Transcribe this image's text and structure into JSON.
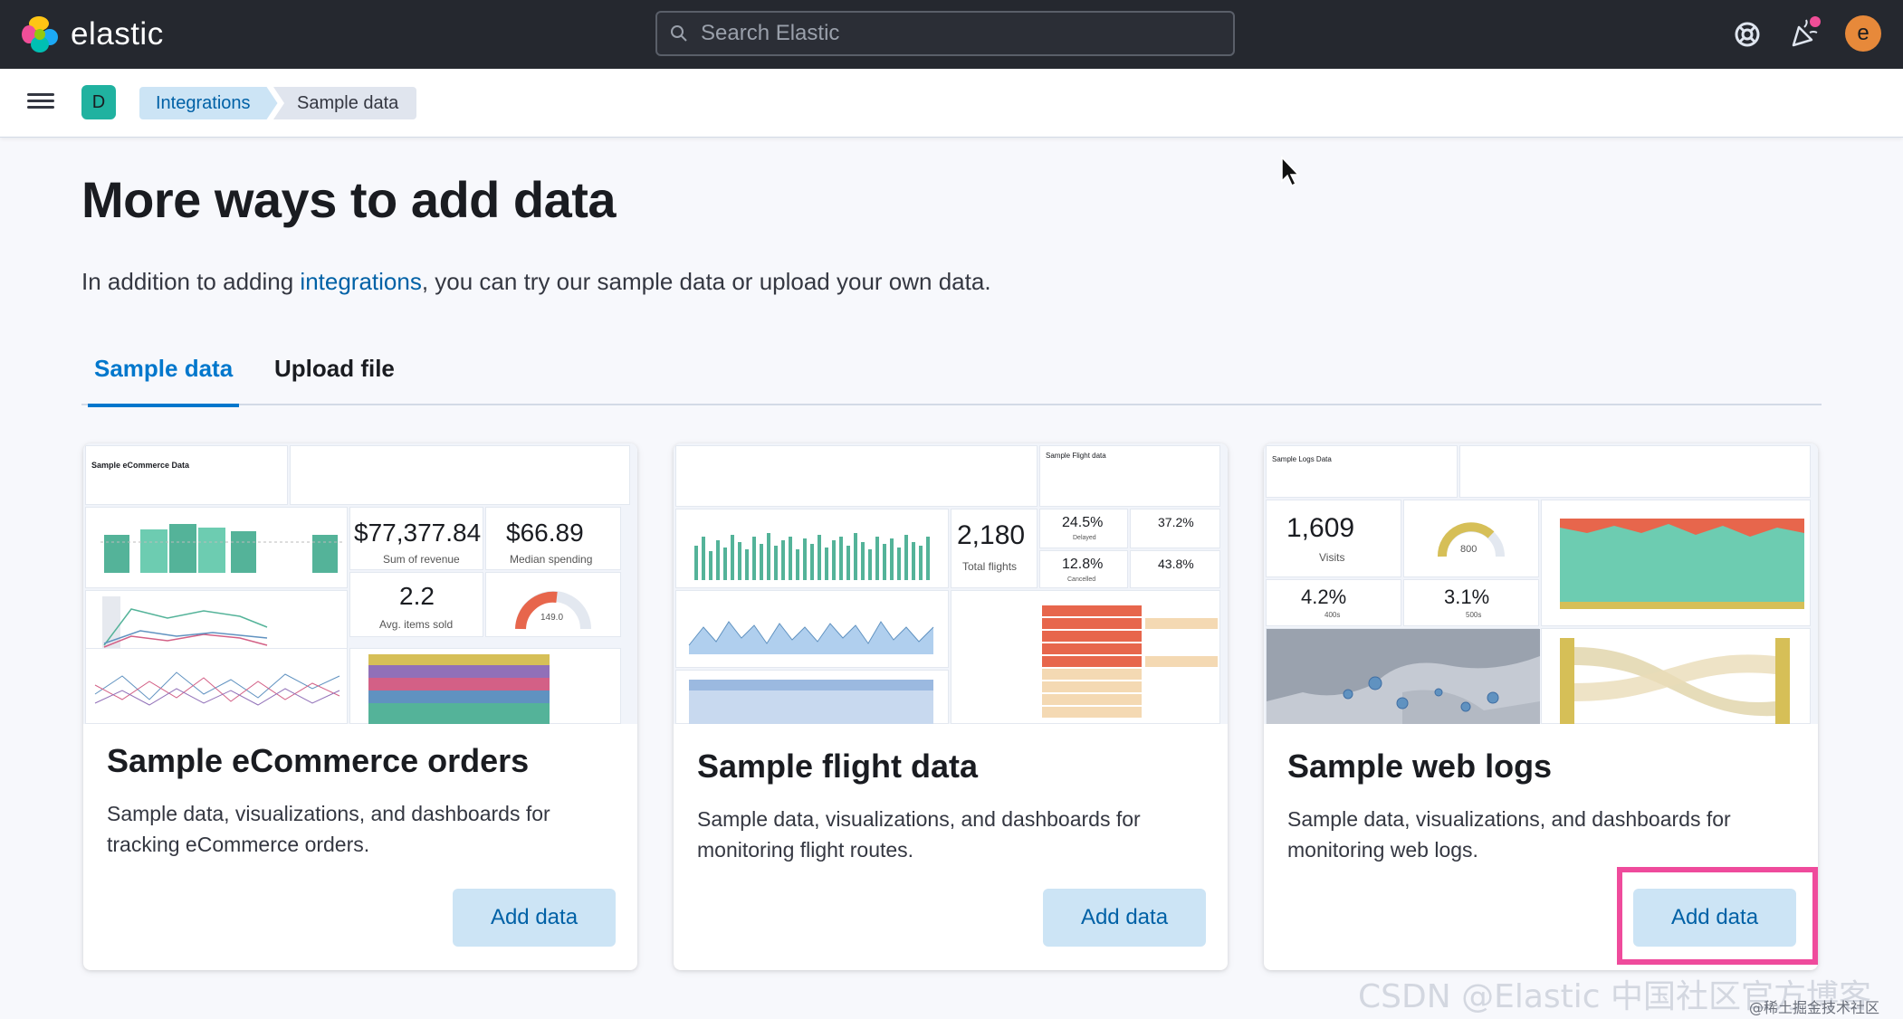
{
  "header": {
    "logo_text": "elastic",
    "search_placeholder": "Search Elastic",
    "avatar_initial": "e"
  },
  "navbar": {
    "space_initial": "D",
    "breadcrumbs": [
      "Integrations",
      "Sample data"
    ]
  },
  "page": {
    "title": "More ways to add data",
    "intro_before": "In addition to adding ",
    "intro_link": "integrations",
    "intro_after": ", you can try our sample data or upload your own data.",
    "tabs": [
      "Sample data",
      "Upload file"
    ],
    "active_tab": "Sample data"
  },
  "cards": [
    {
      "title": "Sample eCommerce orders",
      "description": "Sample data, visualizations, and dashboards for tracking eCommerce orders.",
      "button": "Add data",
      "thumb_metrics": [
        {
          "value": "$77,377.84",
          "label": "Sum of revenue"
        },
        {
          "value": "$66.89",
          "label": "Median spending"
        },
        {
          "value": "2.2",
          "label": "Avg. items sold"
        },
        {
          "value": "149.0",
          "label": ""
        }
      ],
      "thumb_title": "Sample eCommerce Data"
    },
    {
      "title": "Sample flight data",
      "description": "Sample data, visualizations, and dashboards for monitoring flight routes.",
      "button": "Add data",
      "thumb_metrics": [
        {
          "value": "2,180",
          "label": "Total flights"
        },
        {
          "value": "24.5%",
          "label": "Delayed"
        },
        {
          "value": "37.2%",
          "label": ""
        },
        {
          "value": "12.8%",
          "label": "Cancelled"
        },
        {
          "value": "43.8%",
          "label": ""
        }
      ],
      "thumb_title": "Sample Flight data"
    },
    {
      "title": "Sample web logs",
      "description": "Sample data, visualizations, and dashboards for monitoring web logs.",
      "button": "Add data",
      "thumb_metrics": [
        {
          "value": "1,609",
          "label": "Visits"
        },
        {
          "value": "800",
          "label": ""
        },
        {
          "value": "4.2%",
          "label": "400s"
        },
        {
          "value": "3.1%",
          "label": "500s"
        }
      ],
      "thumb_title": "Sample Logs Data"
    }
  ],
  "watermark": {
    "text": "CSDN @Elastic 中国社区官方博客",
    "small": "@稀土掘金技术社区"
  },
  "colors": {
    "accent": "#0077cc",
    "button_bg": "#cce4f5",
    "highlight": "#ef4b9c",
    "header_bg": "#25282f",
    "chart_green": "#54b399"
  }
}
